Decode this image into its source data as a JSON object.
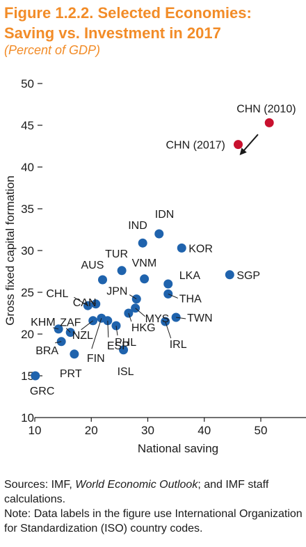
{
  "figure": {
    "title_line1": "Figure 1.2.2. Selected Economies:",
    "title_line2": "Saving vs. Investment in 2017",
    "subtitle": "(Percent of GDP)"
  },
  "chart_data": {
    "type": "scatter",
    "xlabel": "National saving",
    "ylabel": "Gross fixed capital formation",
    "xlim": [
      10,
      58
    ],
    "ylim": [
      10,
      50
    ],
    "xticks": [
      10,
      20,
      30,
      40,
      50
    ],
    "yticks": [
      10,
      15,
      20,
      25,
      30,
      35,
      40,
      45,
      50
    ],
    "grid": false,
    "colors": {
      "main": "#1f63ad",
      "highlight": "#c8102e"
    },
    "points": [
      {
        "label": "GRC",
        "x": 10.1,
        "y": 15.0,
        "group": "main"
      },
      {
        "label": "BRA",
        "x": 14.7,
        "y": 19.1,
        "group": "main"
      },
      {
        "label": "KHM",
        "x": 14.2,
        "y": 20.6,
        "group": "main"
      },
      {
        "label": "ZAF",
        "x": 16.3,
        "y": 20.2,
        "group": "main"
      },
      {
        "label": "PRT",
        "x": 17.0,
        "y": 17.6,
        "group": "main"
      },
      {
        "label": "NZL",
        "x": 20.3,
        "y": 21.6,
        "group": "main"
      },
      {
        "label": "FIN",
        "x": 21.8,
        "y": 21.9,
        "group": "main"
      },
      {
        "label": "ESP",
        "x": 22.9,
        "y": 21.6,
        "group": "main"
      },
      {
        "label": "ISL",
        "x": 25.7,
        "y": 18.1,
        "group": "main"
      },
      {
        "label": "PHL",
        "x": 24.4,
        "y": 21.0,
        "group": "main"
      },
      {
        "label": "CHL",
        "x": 19.4,
        "y": 23.4,
        "group": "main"
      },
      {
        "label": "CAN",
        "x": 20.8,
        "y": 23.6,
        "group": "main"
      },
      {
        "label": "AUS",
        "x": 22.0,
        "y": 26.5,
        "group": "main"
      },
      {
        "label": "TUR",
        "x": 25.4,
        "y": 27.6,
        "group": "main"
      },
      {
        "label": "JPN",
        "x": 28.0,
        "y": 24.2,
        "group": "main"
      },
      {
        "label": "HKG",
        "x": 26.6,
        "y": 22.5,
        "group": "main"
      },
      {
        "label": "MYS",
        "x": 27.8,
        "y": 23.1,
        "group": "main"
      },
      {
        "label": "VNM",
        "x": 29.4,
        "y": 26.6,
        "group": "main"
      },
      {
        "label": "IND",
        "x": 29.1,
        "y": 30.9,
        "group": "main"
      },
      {
        "label": "IDN",
        "x": 32.0,
        "y": 32.0,
        "group": "main"
      },
      {
        "label": "KOR",
        "x": 36.0,
        "y": 30.3,
        "group": "main"
      },
      {
        "label": "LKA",
        "x": 33.6,
        "y": 26.0,
        "group": "main"
      },
      {
        "label": "THA",
        "x": 33.6,
        "y": 24.8,
        "group": "main"
      },
      {
        "label": "TWN",
        "x": 35.0,
        "y": 22.0,
        "group": "main"
      },
      {
        "label": "IRL",
        "x": 33.1,
        "y": 21.5,
        "group": "main"
      },
      {
        "label": "SGP",
        "x": 44.5,
        "y": 27.1,
        "group": "main"
      },
      {
        "label": "CHN (2010)",
        "x": 51.5,
        "y": 45.3,
        "group": "highlight"
      },
      {
        "label": "CHN (2017)",
        "x": 46.0,
        "y": 42.7,
        "group": "highlight"
      }
    ],
    "arrow": {
      "from": [
        49.5,
        43.9
      ],
      "to": [
        46.5,
        41.6
      ]
    }
  },
  "notes": {
    "sources_prefix": "Sources: IMF, ",
    "sources_italic": "World Economic Outlook",
    "sources_suffix": "; and IMF staff calculations.",
    "note": "Note: Data labels in the figure use International Organization for Standardization (ISO) country codes."
  }
}
